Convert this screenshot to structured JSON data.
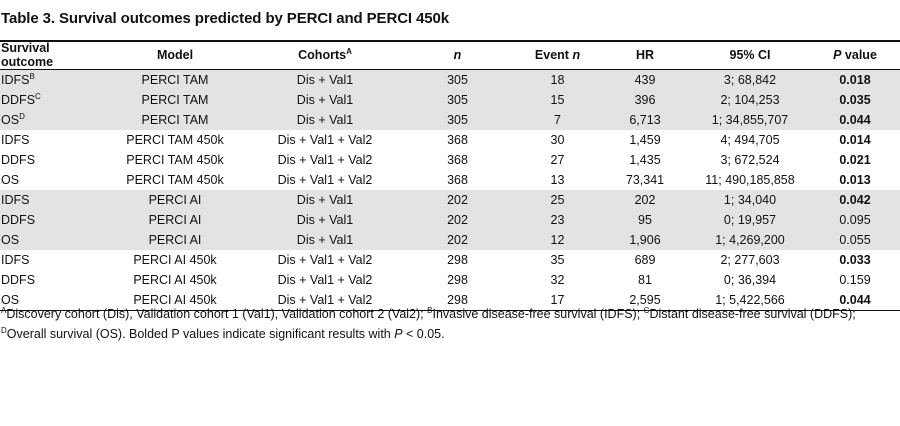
{
  "title": "Table 3. Survival outcomes predicted by PERCI and PERCI 450k",
  "headers": {
    "survival_outcome": "Survival outcome",
    "model": "Model",
    "cohorts": "Cohorts",
    "cohorts_sup": "A",
    "n": "n",
    "event_prefix": "Event ",
    "event_n": "n",
    "hr": "HR",
    "ci": "95% CI",
    "p_italic": "P",
    "p_rest": " value"
  },
  "rows": [
    {
      "outcome": "IDFS",
      "sup": "B",
      "model": "PERCI TAM",
      "cohorts": "Dis + Val1",
      "n": "305",
      "event": "18",
      "hr": "439",
      "ci": "3; 68,842",
      "p": "0.018",
      "bold": true,
      "shade": true
    },
    {
      "outcome": "DDFS",
      "sup": "C",
      "model": "PERCI TAM",
      "cohorts": "Dis + Val1",
      "n": "305",
      "event": "15",
      "hr": "396",
      "ci": "2; 104,253",
      "p": "0.035",
      "bold": true,
      "shade": true
    },
    {
      "outcome": "OS",
      "sup": "D",
      "model": "PERCI TAM",
      "cohorts": "Dis + Val1",
      "n": "305",
      "event": "7",
      "hr": "6,713",
      "ci": "1; 34,855,707",
      "p": "0.044",
      "bold": true,
      "shade": true
    },
    {
      "outcome": "IDFS",
      "sup": "",
      "model": "PERCI TAM 450k",
      "cohorts": "Dis + Val1 + Val2",
      "n": "368",
      "event": "30",
      "hr": "1,459",
      "ci": "4; 494,705",
      "p": "0.014",
      "bold": true,
      "shade": false
    },
    {
      "outcome": "DDFS",
      "sup": "",
      "model": "PERCI TAM 450k",
      "cohorts": "Dis + Val1 + Val2",
      "n": "368",
      "event": "27",
      "hr": "1,435",
      "ci": "3; 672,524",
      "p": "0.021",
      "bold": true,
      "shade": false
    },
    {
      "outcome": "OS",
      "sup": "",
      "model": "PERCI TAM 450k",
      "cohorts": "Dis + Val1 + Val2",
      "n": "368",
      "event": "13",
      "hr": "73,341",
      "ci": "11; 490,185,858",
      "p": "0.013",
      "bold": true,
      "shade": false
    },
    {
      "outcome": "IDFS",
      "sup": "",
      "model": "PERCI AI",
      "cohorts": "Dis + Val1",
      "n": "202",
      "event": "25",
      "hr": "202",
      "ci": "1; 34,040",
      "p": "0.042",
      "bold": true,
      "shade": true
    },
    {
      "outcome": "DDFS",
      "sup": "",
      "model": "PERCI AI",
      "cohorts": "Dis + Val1",
      "n": "202",
      "event": "23",
      "hr": "95",
      "ci": "0; 19,957",
      "p": "0.095",
      "bold": false,
      "shade": true
    },
    {
      "outcome": "OS",
      "sup": "",
      "model": "PERCI AI",
      "cohorts": "Dis + Val1",
      "n": "202",
      "event": "12",
      "hr": "1,906",
      "ci": "1; 4,269,200",
      "p": "0.055",
      "bold": false,
      "shade": true
    },
    {
      "outcome": "IDFS",
      "sup": "",
      "model": "PERCI AI 450k",
      "cohorts": "Dis + Val1 + Val2",
      "n": "298",
      "event": "35",
      "hr": "689",
      "ci": "2; 277,603",
      "p": "0.033",
      "bold": true,
      "shade": false
    },
    {
      "outcome": "DDFS",
      "sup": "",
      "model": "PERCI AI 450k",
      "cohorts": "Dis + Val1 + Val2",
      "n": "298",
      "event": "32",
      "hr": "81",
      "ci": "0; 36,394",
      "p": "0.159",
      "bold": false,
      "shade": false
    },
    {
      "outcome": "OS",
      "sup": "",
      "model": "PERCI AI 450k",
      "cohorts": "Dis + Val1 + Val2",
      "n": "298",
      "event": "17",
      "hr": "2,595",
      "ci": "1; 5,422,566",
      "p": "0.044",
      "bold": true,
      "shade": false
    }
  ],
  "footnotes": {
    "line1": [
      {
        "sup": "A",
        "text": "Discovery cohort (Dis), Validation cohort 1 (Val1), Validation cohort 2 (Val2); "
      },
      {
        "sup": "B",
        "text": "Invasive disease-free survival (IDFS); "
      },
      {
        "sup": "C",
        "text": "Distant disease-free survival (DDFS);"
      }
    ],
    "line2_sup": "D",
    "line2_text": "Overall survival (OS). Bolded P values indicate significant results with ",
    "line2_p": "P",
    "line2_end": " < 0.05."
  }
}
